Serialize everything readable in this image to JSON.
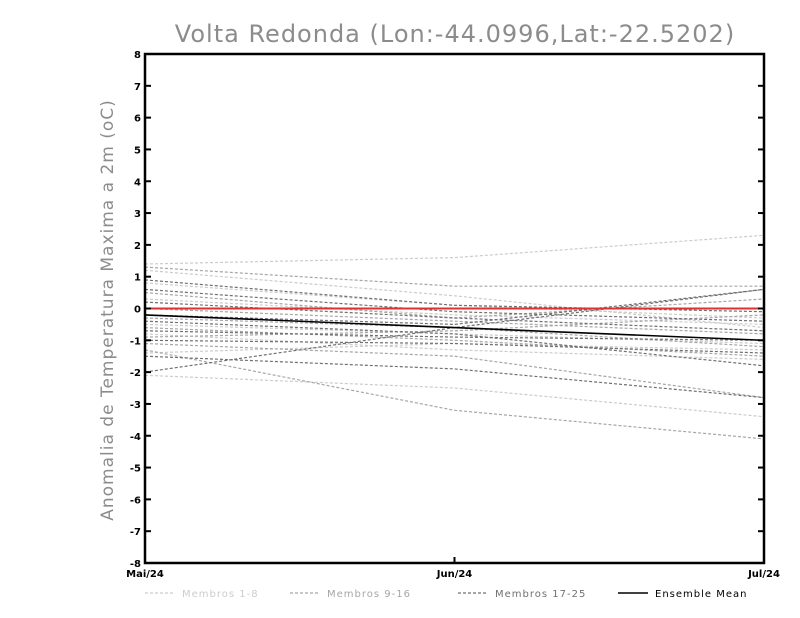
{
  "chart_data": {
    "type": "line",
    "title": "Volta Redonda (Lon:-44.0996,Lat:-22.5202)",
    "ylabel": "Anomalia de Temperatura Maxima a 2m (oC)",
    "xlabel": "",
    "categories": [
      "Mai/24",
      "Jun/24",
      "Jul/24"
    ],
    "ylim": [
      -8,
      8
    ],
    "yticks": [
      "-8",
      "-7",
      "-6",
      "-5",
      "-4",
      "-3",
      "-2",
      "-1",
      "0",
      "1",
      "2",
      "3",
      "4",
      "5",
      "6",
      "7",
      "8"
    ],
    "zero_line_color": "#e03030",
    "legend_position": "bottom",
    "groups": [
      {
        "legend": "Membros 1-8",
        "color": "#cccccc",
        "dash": "dashed"
      },
      {
        "legend": "Membros 9-16",
        "color": "#a6a6a6",
        "dash": "dashed"
      },
      {
        "legend": "Membros 17-25",
        "color": "#707070",
        "dash": "dashed"
      },
      {
        "legend": "Ensemble Mean",
        "color": "#000000",
        "dash": "solid"
      }
    ],
    "series": [
      {
        "group": 0,
        "values": [
          1.4,
          1.6,
          2.3
        ]
      },
      {
        "group": 0,
        "values": [
          1.2,
          0.4,
          -0.6
        ]
      },
      {
        "group": 0,
        "values": [
          0.8,
          0.1,
          -0.3
        ]
      },
      {
        "group": 0,
        "values": [
          0.3,
          -0.2,
          -0.5
        ]
      },
      {
        "group": 0,
        "values": [
          -0.5,
          -0.8,
          -1.1
        ]
      },
      {
        "group": 0,
        "values": [
          -0.8,
          -1.3,
          -1.6
        ]
      },
      {
        "group": 0,
        "values": [
          -1.4,
          -1.1,
          -1.3
        ]
      },
      {
        "group": 0,
        "values": [
          -2.1,
          -2.5,
          -3.4
        ]
      },
      {
        "group": 1,
        "values": [
          1.3,
          0.7,
          0.7
        ]
      },
      {
        "group": 1,
        "values": [
          0.5,
          -0.3,
          0.3
        ]
      },
      {
        "group": 1,
        "values": [
          0.0,
          -0.4,
          -0.8
        ]
      },
      {
        "group": 1,
        "values": [
          -0.3,
          -0.6,
          -1.2
        ]
      },
      {
        "group": 1,
        "values": [
          -0.6,
          -1.0,
          -1.5
        ]
      },
      {
        "group": 1,
        "values": [
          -1.1,
          -1.5,
          -2.8
        ]
      },
      {
        "group": 1,
        "values": [
          -1.3,
          -3.2,
          -4.1
        ]
      },
      {
        "group": 1,
        "values": [
          -0.9,
          -0.7,
          -0.2
        ]
      },
      {
        "group": 2,
        "values": [
          0.9,
          0.1,
          -0.1
        ]
      },
      {
        "group": 2,
        "values": [
          0.6,
          -0.1,
          -0.4
        ]
      },
      {
        "group": 2,
        "values": [
          0.2,
          -0.3,
          -0.7
        ]
      },
      {
        "group": 2,
        "values": [
          -0.2,
          -0.5,
          0.6
        ]
      },
      {
        "group": 2,
        "values": [
          -0.7,
          -0.9,
          -1.0
        ]
      },
      {
        "group": 2,
        "values": [
          -1.0,
          -1.1,
          -1.4
        ]
      },
      {
        "group": 2,
        "values": [
          -1.5,
          -1.9,
          -2.8
        ]
      },
      {
        "group": 2,
        "values": [
          -2.0,
          -0.6,
          0.6
        ]
      },
      {
        "group": 2,
        "values": [
          -0.4,
          -0.8,
          -1.8
        ]
      },
      {
        "group": 3,
        "values": [
          -0.2,
          -0.6,
          -1.0
        ]
      }
    ]
  }
}
